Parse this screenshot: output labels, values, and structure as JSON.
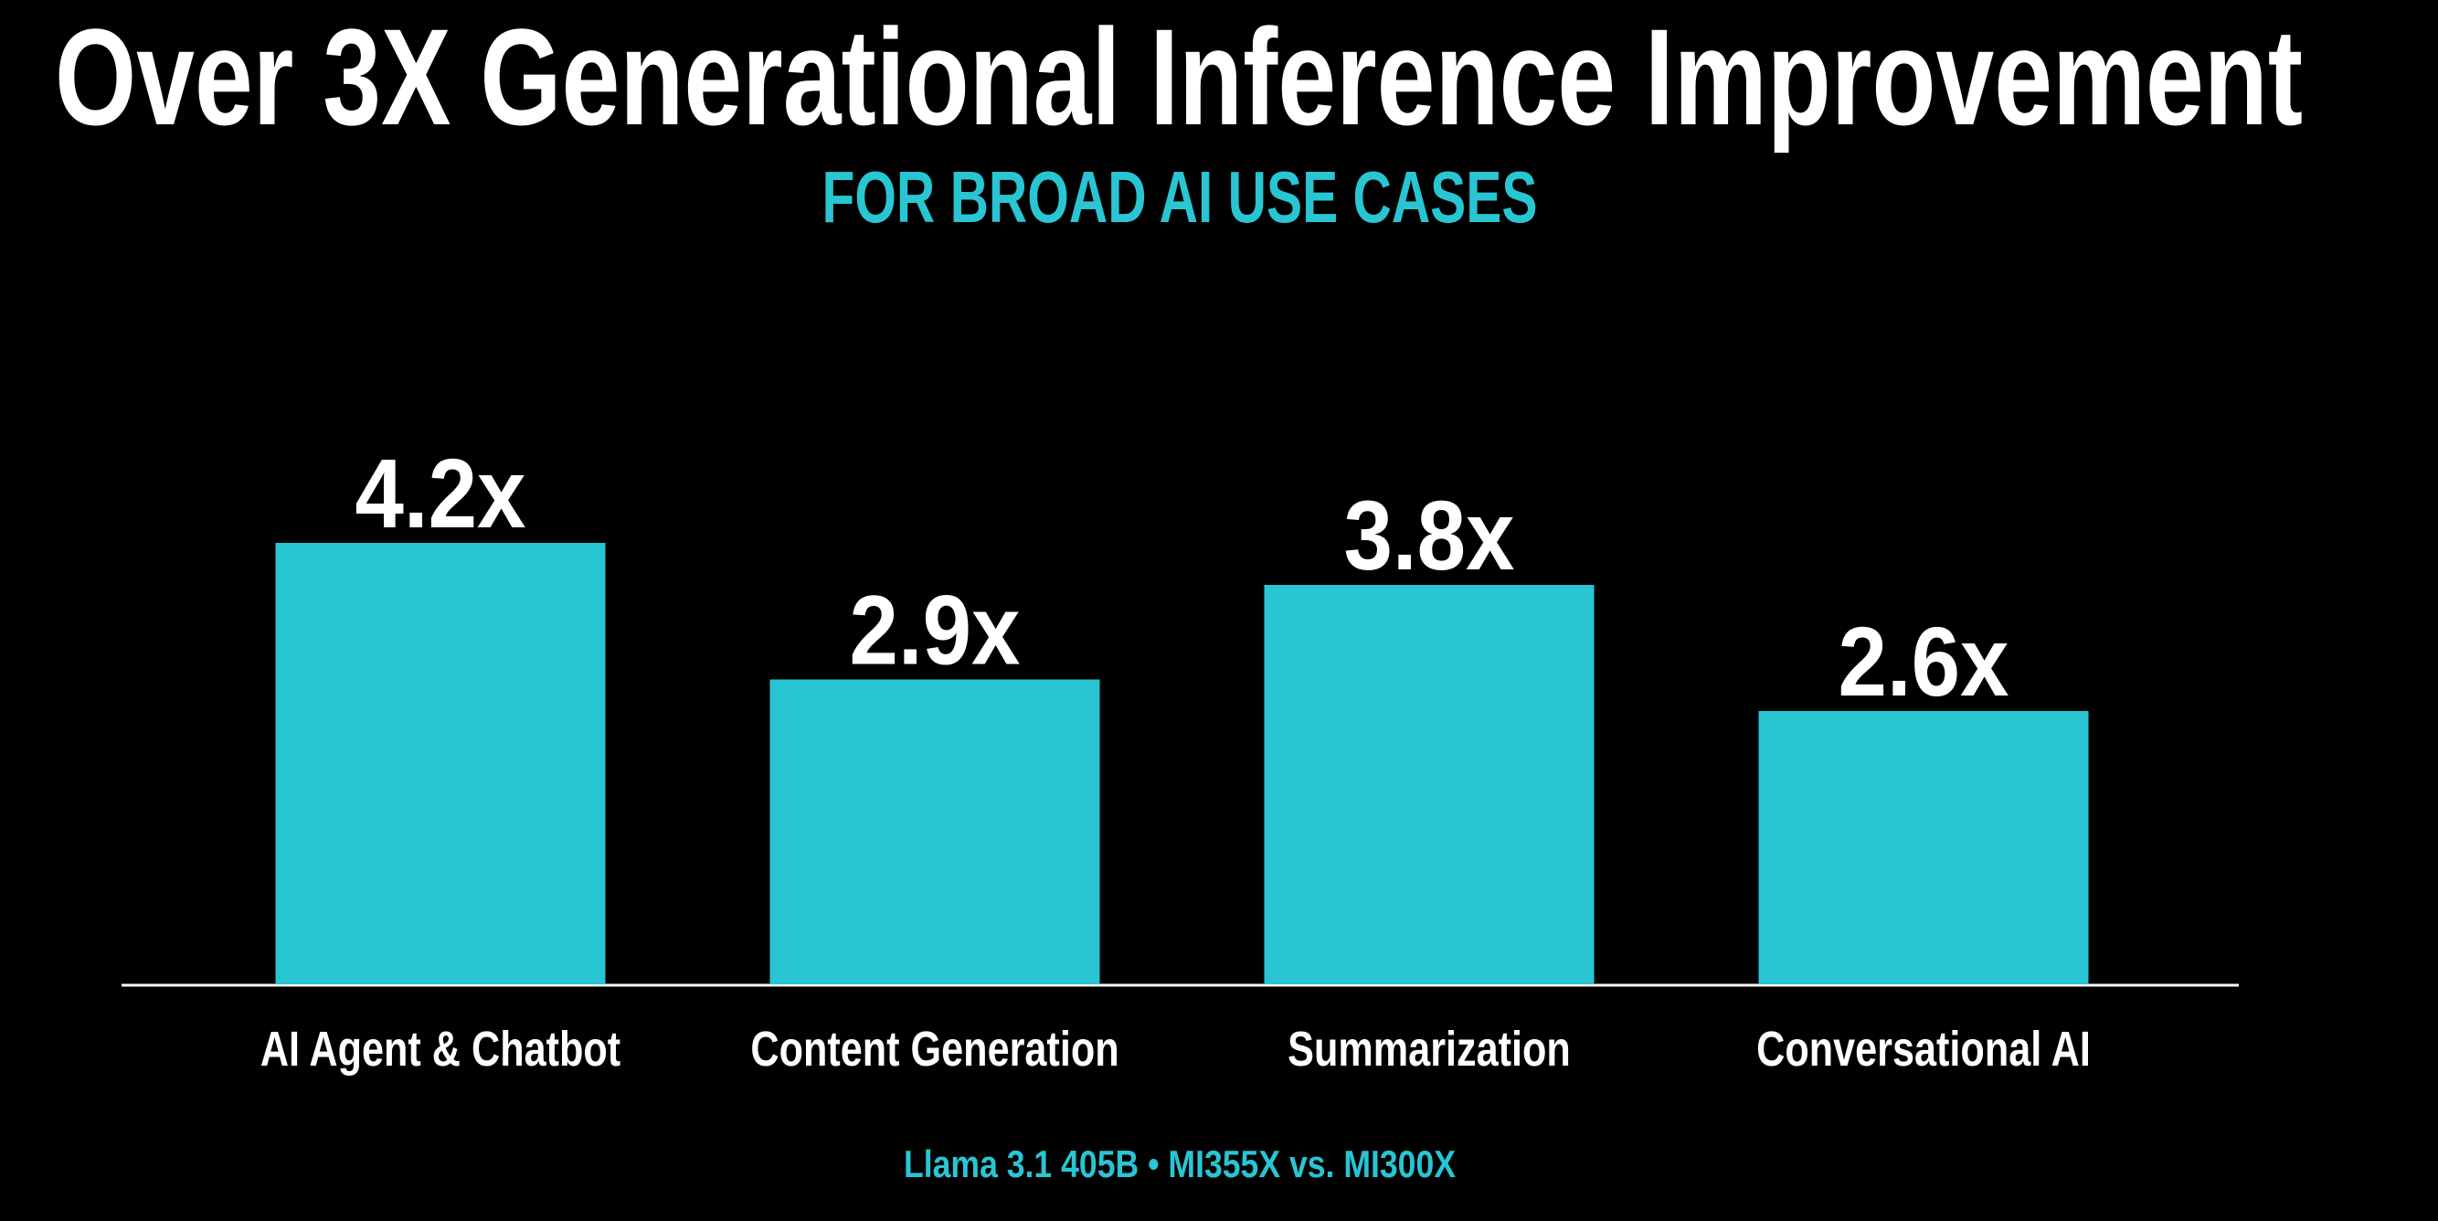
{
  "chart_data": {
    "type": "bar",
    "title": "Over 3X Generational Inference Improvement",
    "subtitle": "FOR BROAD AI USE CASES",
    "categories": [
      "AI Agent & Chatbot",
      "Content Generation",
      "Summarization",
      "Conversational AI"
    ],
    "values": [
      4.2,
      2.9,
      3.8,
      2.6
    ],
    "value_labels": [
      "4.2x",
      "2.9x",
      "3.8x",
      "2.6x"
    ],
    "color": "#29c5d3",
    "footnote": "Llama 3.1 405B • MI355X vs. MI300X"
  }
}
